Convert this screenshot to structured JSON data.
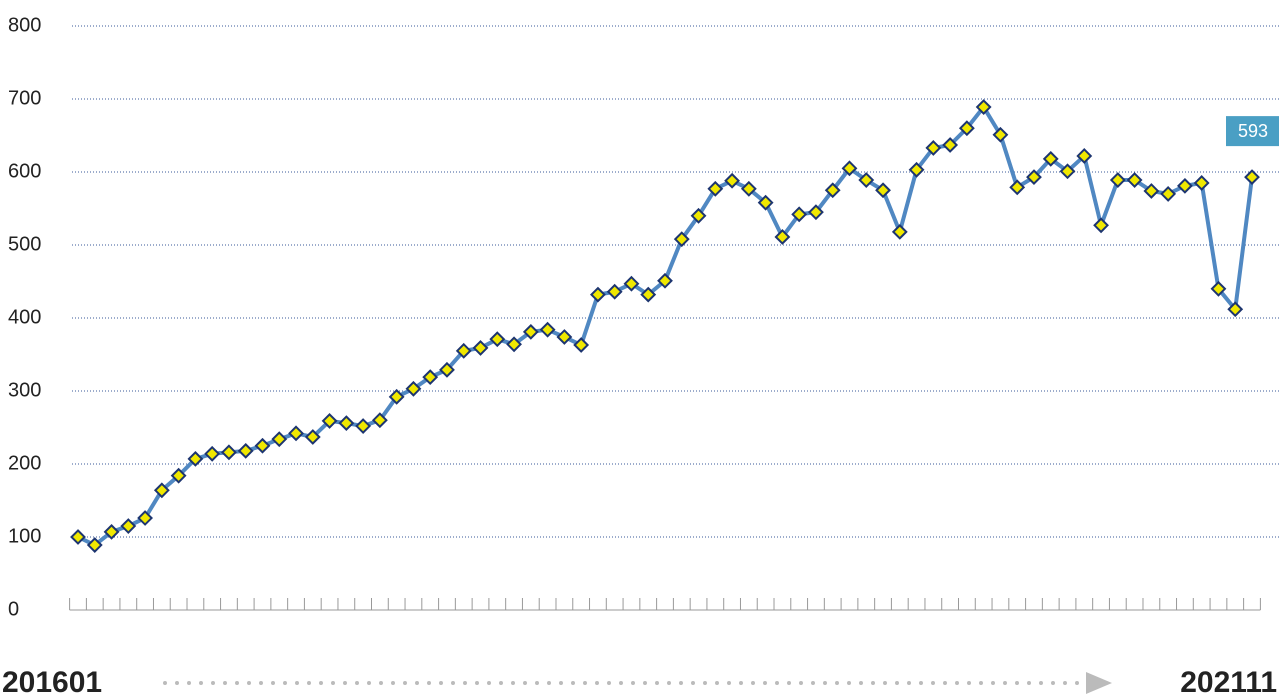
{
  "chart_data": {
    "type": "line",
    "categories": [
      "201601",
      null,
      null,
      null,
      null,
      null,
      null,
      null,
      null,
      null,
      null,
      null,
      null,
      null,
      null,
      null,
      null,
      null,
      null,
      null,
      null,
      null,
      null,
      null,
      null,
      null,
      null,
      null,
      null,
      null,
      null,
      null,
      null,
      null,
      null,
      null,
      null,
      null,
      null,
      null,
      null,
      null,
      null,
      null,
      null,
      null,
      null,
      null,
      null,
      null,
      null,
      null,
      null,
      null,
      null,
      null,
      null,
      null,
      null,
      null,
      null,
      null,
      null,
      null,
      null,
      null,
      null,
      null,
      null,
      null,
      "202111"
    ],
    "values": [
      100,
      89,
      107,
      115,
      126,
      164,
      184,
      207,
      214,
      216,
      218,
      225,
      234,
      242,
      237,
      259,
      256,
      252,
      260,
      292,
      303,
      319,
      329,
      355,
      359,
      371,
      364,
      381,
      384,
      374,
      363,
      432,
      436,
      447,
      432,
      451,
      508,
      540,
      577,
      588,
      577,
      558,
      511,
      542,
      545,
      575,
      605,
      589,
      575,
      518,
      603,
      633,
      637,
      660,
      689,
      651,
      579,
      593,
      618,
      601,
      622,
      527,
      589,
      589,
      574,
      570,
      581,
      585,
      440,
      412,
      593
    ],
    "color": "#5088c2",
    "marker_color": "#f0e800",
    "marker_edge": "#1d3570",
    "label_color": "#4a9fc4",
    "ylim": [
      0,
      800
    ],
    "yticks": [
      0,
      100,
      200,
      300,
      400,
      500,
      600,
      700,
      800
    ],
    "grid": true
  }
}
